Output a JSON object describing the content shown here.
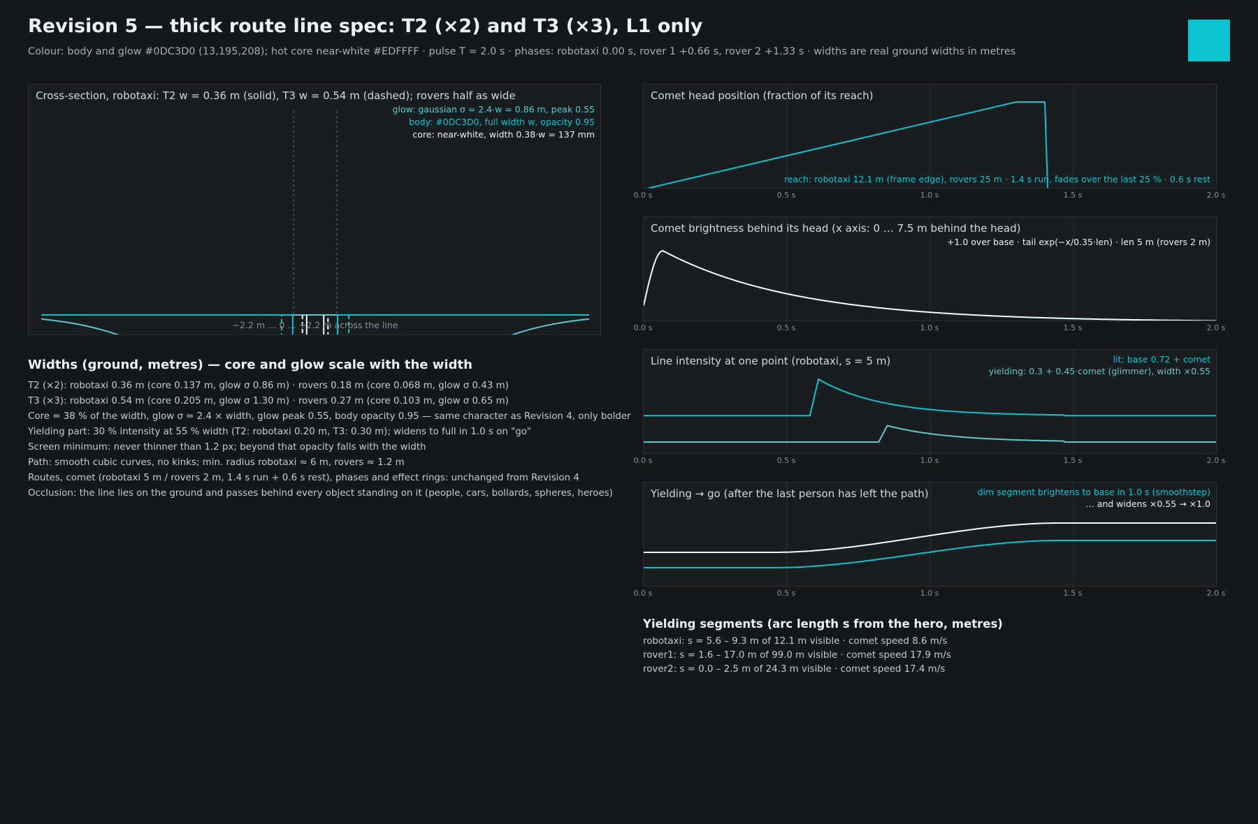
{
  "header": {
    "title": "Revision 5 — thick route line spec: T2 (×2) and T3 (×3), L1 only",
    "subtitle": "Colour: body and glow #0DC3D0 (13,195,208); hot core near-white #EDFFFF · pulse T = 2.0 s · phases: robotaxi 0.00 s, rover 1 +0.66 s, rover 2 +1.33 s · widths are real ground widths in metres",
    "swatch_color": "#0DC3D0"
  },
  "colors": {
    "accent": "#0DC3D0",
    "core": "#EDFFFF",
    "glow": "#5ec8cc",
    "background": "#161719"
  },
  "cross_section": {
    "title": "Cross-section, robotaxi: T2 w = 0.36 m (solid), T3 w = 0.54 m (dashed); rovers half as wide",
    "notes": [
      "glow: gaussian σ = 2.4·w = 0.86 m, peak 0.55",
      "body: #0DC3D0, full width w, opacity 0.95",
      "core: near-white, width 0.38·w = 137 mm"
    ],
    "xlabel": "−2.2 m … 0 … +2.2 m across the line"
  },
  "widths": {
    "title": "Widths (ground, metres) — core and glow scale with the width",
    "lines": [
      "T2 (×2): robotaxi 0.36 m (core 0.137 m, glow σ 0.86 m) · rovers 0.18 m (core 0.068 m, glow σ 0.43 m)",
      "T3 (×3): robotaxi 0.54 m (core 0.205 m, glow σ 1.30 m) · rovers 0.27 m (core 0.103 m, glow σ 0.65 m)",
      "Core = 38 % of the width, glow σ = 2.4 × width, glow peak 0.55, body opacity 0.95 — same character as Revision 4, only bolder",
      "Yielding part: 30 % intensity at 55 % width (T2: robotaxi 0.20 m, T3: 0.30 m); widens to full in 1.0 s on \"go\"",
      "Screen minimum: never thinner than 1.2 px; beyond that opacity falls with the width",
      "Path: smooth cubic curves, no kinks; min. radius robotaxi ≈ 6 m, rovers ≈ 1.2 m",
      "Routes, comet (robotaxi 5 m / rovers 2 m, 1.4 s run + 0.6 s rest), phases and effect rings: unchanged from Revision 4",
      "Occlusion: the line lies on the ground and passes behind every object standing on it (people, cars, bollards, spheres, heroes)"
    ]
  },
  "time_ticks": [
    "0.0 s",
    "0.5 s",
    "1.0 s",
    "1.5 s",
    "2.0 s"
  ],
  "panels": {
    "head": {
      "title": "Comet head position (fraction of its reach)",
      "note": "reach: robotaxi 12.1 m (frame edge), rovers 25 m · 1.4 s run, fades over the last 25 % · 0.6 s rest"
    },
    "brightness": {
      "title": "Comet brightness behind its head (x axis: 0 … 7.5 m behind the head)",
      "note": "+1.0 over base · tail exp(−x/0.35·len) · len 5 m (rovers 2 m)"
    },
    "intensity": {
      "title": "Line intensity at one point (robotaxi, s = 5 m)",
      "note1": "lit: base 0.72 + comet",
      "note2": "yielding: 0.3 + 0.45·comet (glimmer), width ×0.55"
    },
    "yielding": {
      "title": "Yielding → go (after the last person has left the path)",
      "note1": "dim segment brightens to base in 1.0 s (smoothstep)",
      "note2": "… and widens ×0.55 → ×1.0"
    }
  },
  "segments": {
    "title": "Yielding segments (arc length s from the hero, metres)",
    "lines": [
      "robotaxi: s = 5.6 – 9.3 m of 12.1 m visible · comet speed 8.6 m/s",
      "rover1: s = 1.6 – 17.0 m of 99.0 m visible · comet speed 17.9 m/s",
      "rover2: s = 0.0 – 2.5 m of 24.3 m visible · comet speed 17.4 m/s"
    ]
  },
  "chart_data": [
    {
      "type": "line",
      "title": "Cross-section, robotaxi: T2 w = 0.36 m (solid), T3 w = 0.54 m (dashed); rovers half as wide",
      "xlabel": "−2.2 m … 0 … +2.2 m across the line",
      "xlim": [
        -2.2,
        2.2
      ],
      "ylim": [
        0,
        1
      ],
      "series": [
        {
          "name": "T2",
          "width": 0.36,
          "core_width": 0.137,
          "glow_sigma": 0.86,
          "glow_peak": 0.55,
          "body_opacity": 0.95
        },
        {
          "name": "T3",
          "width": 0.54,
          "core_width": 0.205,
          "glow_sigma": 1.3,
          "glow_peak": 0.55,
          "body_opacity": 0.95
        }
      ]
    },
    {
      "type": "line",
      "title": "Comet head position (fraction of its reach)",
      "xlim": [
        0,
        2
      ],
      "ylim": [
        0,
        1
      ],
      "x": [
        0.0,
        1.3,
        1.4,
        1.41,
        2.0
      ],
      "y": [
        0.0,
        1.0,
        1.0,
        0.0,
        0.0
      ]
    },
    {
      "type": "line",
      "title": "Comet brightness behind its head (x axis: 0 … 7.5 m behind the head)",
      "xlim": [
        0,
        7.5
      ],
      "ylim": [
        0,
        1
      ],
      "x": [
        0.0,
        0.25,
        0.5,
        1.0,
        2.0,
        3.0,
        4.0,
        5.0,
        6.0,
        7.5
      ],
      "y": [
        0.23,
        1.0,
        0.89,
        0.72,
        0.46,
        0.28,
        0.17,
        0.1,
        0.06,
        0.01
      ]
    },
    {
      "type": "line",
      "title": "Line intensity at one point (robotaxi, s = 5 m)",
      "xlim": [
        0,
        2
      ],
      "series": [
        {
          "name": "lit",
          "x": [
            0.0,
            0.58,
            0.61,
            0.8,
            1.0,
            1.2,
            1.47,
            2.0
          ],
          "y": [
            0.72,
            0.72,
            1.72,
            1.3,
            1.0,
            0.85,
            0.72,
            0.72
          ]
        },
        {
          "name": "yielding",
          "x": [
            0.0,
            0.82,
            0.85,
            1.0,
            1.2,
            1.47,
            2.0
          ],
          "y": [
            0.3,
            0.3,
            0.75,
            0.6,
            0.48,
            0.36,
            0.3
          ]
        }
      ]
    },
    {
      "type": "line",
      "title": "Yielding → go (after the last person has left the path)",
      "xlim": [
        0,
        2
      ],
      "series": [
        {
          "name": "width",
          "x": [
            0.0,
            0.45,
            0.95,
            1.45,
            2.0
          ],
          "y": [
            0.55,
            0.55,
            0.775,
            1.0,
            1.0
          ]
        },
        {
          "name": "intensity",
          "x": [
            0.0,
            0.45,
            0.95,
            1.45,
            2.0
          ],
          "y": [
            0.3,
            0.3,
            0.51,
            0.72,
            0.72
          ]
        }
      ]
    }
  ]
}
